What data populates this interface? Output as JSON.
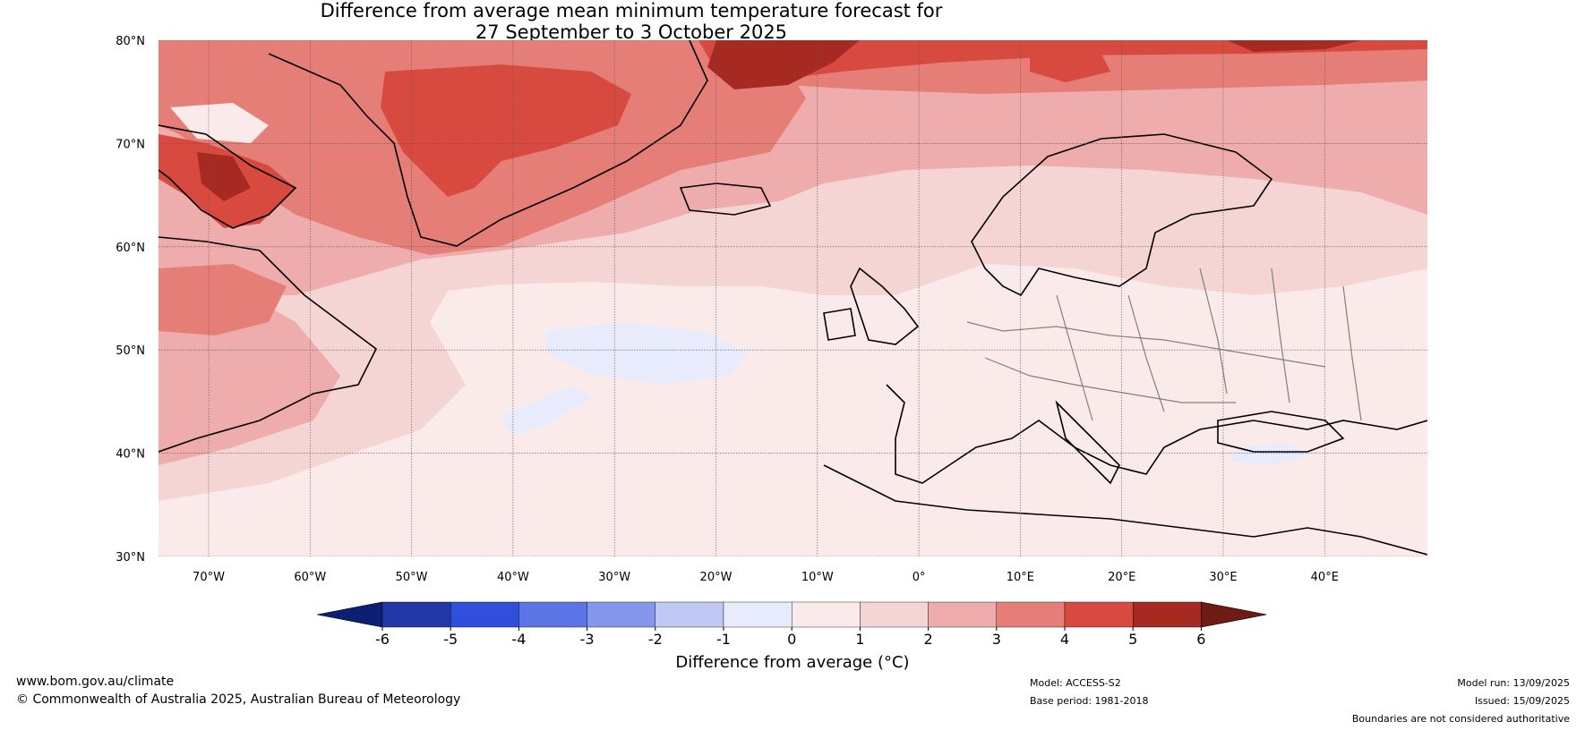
{
  "title": {
    "line1": "Difference from average mean minimum temperature forecast for",
    "line2": "27 September to 3 October 2025"
  },
  "axes": {
    "lat_labels": [
      "80°N",
      "70°N",
      "60°N",
      "50°N",
      "40°N",
      "30°N"
    ],
    "lon_labels": [
      "70°W",
      "60°W",
      "50°W",
      "40°W",
      "30°W",
      "20°W",
      "10°W",
      "0°",
      "10°E",
      "20°E",
      "30°E",
      "40°E"
    ]
  },
  "colorbar": {
    "title": "Difference from average (°C)",
    "ticks": [
      "-6",
      "-5",
      "-4",
      "-3",
      "-2",
      "-1",
      "0",
      "1",
      "2",
      "3",
      "4",
      "5",
      "6"
    ],
    "colors": [
      "#0d1f73",
      "#2238a8",
      "#2f4fdc",
      "#5b74e6",
      "#8497ec",
      "#c0c9f4",
      "#e7ebfb",
      "#fbeaea",
      "#f5d4d4",
      "#eeacac",
      "#e67e78",
      "#d84a40",
      "#a72a22",
      "#6e1a15"
    ]
  },
  "footer": {
    "website": "www.bom.gov.au/climate",
    "copyright": "© Commonwealth of Australia 2025, Australian Bureau of Meteorology",
    "model": "Model: ACCESS-S2",
    "base_period": "Base period: 1981-2018",
    "model_run": "Model run: 13/09/2025",
    "issued": "Issued: 15/09/2025",
    "disclaimer": "Boundaries are not considered authoritative"
  }
}
